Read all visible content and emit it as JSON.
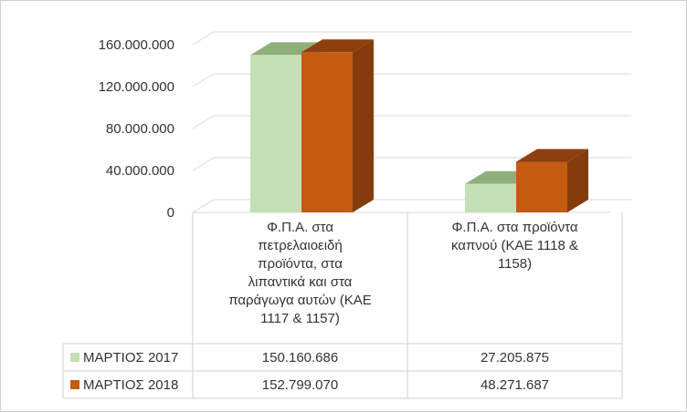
{
  "chart_data": {
    "type": "bar",
    "style": "3d-clustered-with-data-table",
    "categories": [
      [
        "Φ.Π.Α. στα",
        "πετρελαιοειδή",
        "προϊόντα, στα",
        "λιπαντικά και στα",
        "παράγωγα αυτών (ΚΑΕ",
        "1117 & 1157)"
      ],
      [
        "Φ.Π.Α. στα προϊόντα",
        "καπνού (ΚΑΕ 1118 &",
        "1158)"
      ]
    ],
    "series": [
      {
        "name": "ΜΑΡΤΙΟΣ 2017",
        "values": [
          150160686,
          27205875
        ],
        "labels": [
          "150.160.686",
          "27.205.875"
        ],
        "color": "#c5e0b4",
        "side_color": "#a9c191",
        "top_color": "#8faf7a"
      },
      {
        "name": "ΜΑΡΤΙΟΣ 2018",
        "values": [
          152799070,
          48271687
        ],
        "labels": [
          "152.799.070",
          "48.271.687"
        ],
        "color": "#c55a11",
        "side_color": "#843c0c",
        "top_color": "#8e3f0e"
      }
    ],
    "ylim": [
      0,
      160000000
    ],
    "yticks": [
      0,
      40000000,
      80000000,
      120000000,
      160000000
    ],
    "ytick_labels": [
      "0",
      "40.000.000",
      "80.000.000",
      "120.000.000",
      "160.000.000"
    ],
    "grid": true,
    "legend": "data-table"
  }
}
